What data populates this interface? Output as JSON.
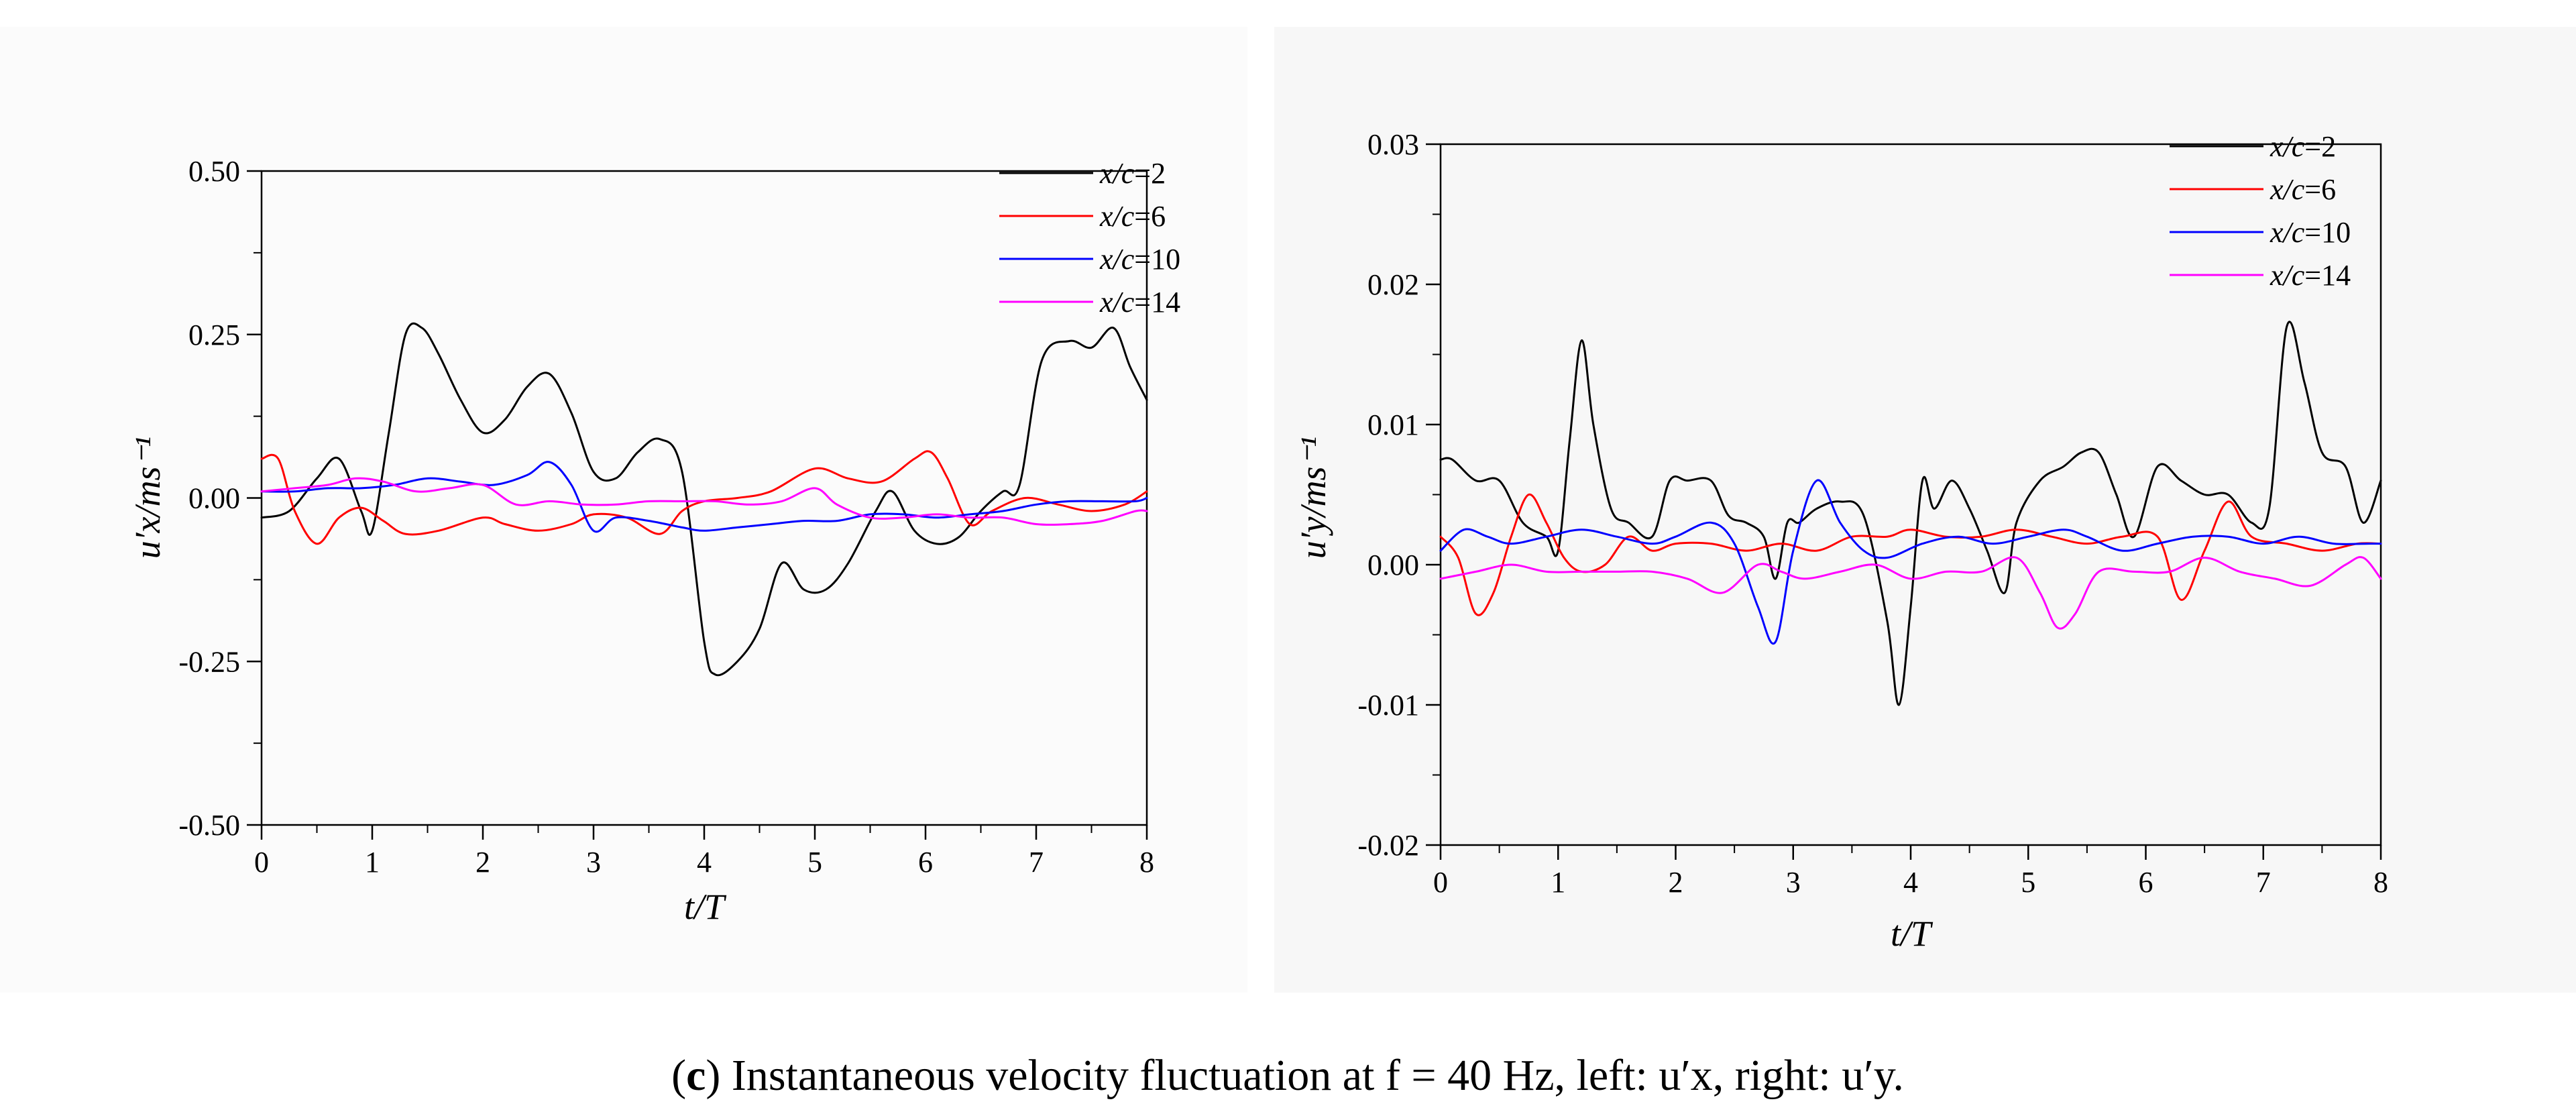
{
  "caption": {
    "label_letter": "c",
    "text": "Instantaneous velocity fluctuation at f = 40 Hz, left: u′x, right: u′y."
  },
  "colors": {
    "s1": "#000000",
    "s2": "#ff0000",
    "s3": "#0000ff",
    "s4": "#ff00ff",
    "bg": "#ffffff",
    "panel": "#f8f8f8"
  },
  "chart_data": [
    {
      "type": "line",
      "panel": "left",
      "xlabel": "t/T",
      "ylabel": "u′x/ms⁻¹",
      "xlim": [
        0,
        8
      ],
      "ylim": [
        -0.5,
        0.5
      ],
      "x_ticks": [
        "0",
        "1",
        "2",
        "3",
        "4",
        "5",
        "6",
        "7",
        "8"
      ],
      "y_ticks": [
        "0.50",
        "0.25",
        "0.00",
        "-0.25",
        "-0.50"
      ],
      "legend_position": "top-right",
      "series": [
        {
          "name": "x/c=2",
          "color": "#000000",
          "x": [
            0,
            0.25,
            0.5,
            0.7,
            0.9,
            1.0,
            1.15,
            1.3,
            1.45,
            1.6,
            1.8,
            2.0,
            2.2,
            2.4,
            2.6,
            2.8,
            3.0,
            3.2,
            3.4,
            3.6,
            3.8,
            4.0,
            4.1,
            4.3,
            4.5,
            4.7,
            4.9,
            5.1,
            5.3,
            5.55,
            5.7,
            5.9,
            6.1,
            6.3,
            6.5,
            6.7,
            6.85,
            7.05,
            7.3,
            7.5,
            7.7,
            7.85,
            8.0
          ],
          "y": [
            -0.03,
            -0.02,
            0.03,
            0.06,
            -0.02,
            -0.05,
            0.1,
            0.25,
            0.26,
            0.22,
            0.15,
            0.1,
            0.12,
            0.17,
            0.19,
            0.13,
            0.04,
            0.03,
            0.07,
            0.09,
            0.04,
            -0.22,
            -0.27,
            -0.25,
            -0.2,
            -0.1,
            -0.14,
            -0.14,
            -0.1,
            -0.02,
            0.01,
            -0.05,
            -0.07,
            -0.06,
            -0.02,
            0.01,
            0.02,
            0.21,
            0.24,
            0.23,
            0.26,
            0.2,
            0.15
          ]
        },
        {
          "name": "x/c=6",
          "color": "#ff0000",
          "x": [
            0,
            0.15,
            0.3,
            0.5,
            0.7,
            0.9,
            1.1,
            1.3,
            1.6,
            2.0,
            2.2,
            2.5,
            2.8,
            3.0,
            3.3,
            3.6,
            3.8,
            4.0,
            4.3,
            4.6,
            5.0,
            5.3,
            5.6,
            5.9,
            6.05,
            6.2,
            6.4,
            6.6,
            6.9,
            7.2,
            7.5,
            7.8,
            8.0
          ],
          "y": [
            0.06,
            0.06,
            -0.02,
            -0.07,
            -0.03,
            -0.015,
            -0.035,
            -0.055,
            -0.05,
            -0.03,
            -0.04,
            -0.05,
            -0.04,
            -0.025,
            -0.03,
            -0.055,
            -0.02,
            -0.005,
            0.0,
            0.01,
            0.045,
            0.03,
            0.025,
            0.06,
            0.07,
            0.03,
            -0.04,
            -0.02,
            0.0,
            -0.01,
            -0.02,
            -0.01,
            0.01
          ]
        },
        {
          "name": "x/c=10",
          "color": "#0000ff",
          "x": [
            0,
            0.3,
            0.6,
            0.9,
            1.2,
            1.5,
            1.8,
            2.1,
            2.4,
            2.6,
            2.8,
            3.0,
            3.2,
            3.5,
            3.8,
            4.0,
            4.3,
            4.6,
            4.9,
            5.2,
            5.5,
            5.8,
            6.1,
            6.4,
            6.7,
            7.0,
            7.3,
            7.6,
            7.9,
            8.0
          ],
          "y": [
            0.01,
            0.01,
            0.015,
            0.015,
            0.02,
            0.03,
            0.025,
            0.02,
            0.035,
            0.055,
            0.02,
            -0.05,
            -0.03,
            -0.035,
            -0.045,
            -0.05,
            -0.045,
            -0.04,
            -0.035,
            -0.035,
            -0.025,
            -0.025,
            -0.03,
            -0.025,
            -0.02,
            -0.01,
            -0.005,
            -0.005,
            -0.005,
            0.0
          ]
        },
        {
          "name": "x/c=14",
          "color": "#ff00ff",
          "x": [
            0,
            0.3,
            0.6,
            0.85,
            1.1,
            1.4,
            1.7,
            2.0,
            2.3,
            2.6,
            2.9,
            3.2,
            3.5,
            3.8,
            4.1,
            4.4,
            4.7,
            5.0,
            5.2,
            5.5,
            5.8,
            6.1,
            6.4,
            6.7,
            7.0,
            7.3,
            7.6,
            7.9,
            8.0
          ],
          "y": [
            0.01,
            0.015,
            0.02,
            0.03,
            0.025,
            0.01,
            0.015,
            0.02,
            -0.01,
            -0.005,
            -0.01,
            -0.01,
            -0.005,
            -0.005,
            -0.005,
            -0.01,
            -0.005,
            0.015,
            -0.01,
            -0.03,
            -0.03,
            -0.025,
            -0.03,
            -0.03,
            -0.04,
            -0.04,
            -0.035,
            -0.02,
            -0.02
          ]
        }
      ]
    },
    {
      "type": "line",
      "panel": "right",
      "xlabel": "t/T",
      "ylabel": "u′y/ms⁻¹",
      "xlim": [
        0,
        8
      ],
      "ylim": [
        -0.02,
        0.03
      ],
      "x_ticks": [
        "0",
        "1",
        "2",
        "3",
        "4",
        "5",
        "6",
        "7",
        "8"
      ],
      "y_ticks": [
        "0.03",
        "0.02",
        "0.01",
        "0.00",
        "-0.01",
        "-0.02"
      ],
      "legend_position": "top-right",
      "series": [
        {
          "name": "x/c=2",
          "color": "#000000",
          "x": [
            0,
            0.1,
            0.3,
            0.5,
            0.7,
            0.9,
            1.0,
            1.1,
            1.2,
            1.3,
            1.45,
            1.6,
            1.8,
            1.95,
            2.1,
            2.3,
            2.45,
            2.6,
            2.75,
            2.85,
            2.95,
            3.05,
            3.2,
            3.4,
            3.6,
            3.8,
            3.9,
            4.0,
            4.1,
            4.2,
            4.35,
            4.5,
            4.65,
            4.8,
            4.9,
            5.1,
            5.3,
            5.45,
            5.6,
            5.75,
            5.9,
            6.1,
            6.3,
            6.5,
            6.7,
            6.9,
            7.05,
            7.2,
            7.35,
            7.5,
            7.7,
            7.85,
            8.0
          ],
          "y": [
            0.0075,
            0.0075,
            0.006,
            0.006,
            0.003,
            0.002,
            0.001,
            0.009,
            0.016,
            0.01,
            0.004,
            0.003,
            0.002,
            0.006,
            0.006,
            0.006,
            0.0035,
            0.003,
            0.002,
            -0.001,
            0.003,
            0.003,
            0.004,
            0.0045,
            0.0035,
            -0.004,
            -0.01,
            -0.003,
            0.006,
            0.004,
            0.006,
            0.004,
            0.001,
            -0.002,
            0.003,
            0.006,
            0.007,
            0.008,
            0.008,
            0.005,
            0.002,
            0.007,
            0.006,
            0.005,
            0.005,
            0.003,
            0.004,
            0.017,
            0.013,
            0.008,
            0.007,
            0.003,
            0.006
          ]
        },
        {
          "name": "x/c=6",
          "color": "#ff0000",
          "x": [
            0,
            0.15,
            0.3,
            0.45,
            0.6,
            0.75,
            0.9,
            1.05,
            1.2,
            1.4,
            1.6,
            1.8,
            2.0,
            2.3,
            2.6,
            2.9,
            3.2,
            3.5,
            3.8,
            4.0,
            4.3,
            4.6,
            4.9,
            5.2,
            5.5,
            5.8,
            6.1,
            6.3,
            6.5,
            6.7,
            6.9,
            7.2,
            7.5,
            7.8,
            8.0
          ],
          "y": [
            0.002,
            0.0005,
            -0.0035,
            -0.002,
            0.002,
            0.005,
            0.003,
            0.0005,
            -0.0005,
            0.0,
            0.002,
            0.001,
            0.0015,
            0.0015,
            0.001,
            0.0015,
            0.001,
            0.002,
            0.002,
            0.0025,
            0.002,
            0.002,
            0.0025,
            0.002,
            0.0015,
            0.002,
            0.002,
            -0.0025,
            0.001,
            0.0045,
            0.002,
            0.0015,
            0.001,
            0.0015,
            0.0015
          ]
        },
        {
          "name": "x/c=10",
          "color": "#0000ff",
          "x": [
            0,
            0.2,
            0.4,
            0.6,
            0.9,
            1.2,
            1.5,
            1.8,
            2.0,
            2.3,
            2.5,
            2.7,
            2.85,
            3.0,
            3.2,
            3.4,
            3.6,
            3.8,
            4.1,
            4.4,
            4.7,
            5.0,
            5.3,
            5.5,
            5.8,
            6.1,
            6.4,
            6.7,
            7.0,
            7.3,
            7.6,
            7.9,
            8.0
          ],
          "y": [
            0.001,
            0.0025,
            0.002,
            0.0015,
            0.002,
            0.0025,
            0.002,
            0.0015,
            0.002,
            0.003,
            0.0015,
            -0.003,
            -0.0055,
            0.001,
            0.006,
            0.003,
            0.001,
            0.0005,
            0.0015,
            0.002,
            0.0015,
            0.002,
            0.0025,
            0.002,
            0.001,
            0.0015,
            0.002,
            0.002,
            0.0015,
            0.002,
            0.0015,
            0.0015,
            0.0015
          ]
        },
        {
          "name": "x/c=14",
          "color": "#ff00ff",
          "x": [
            0,
            0.3,
            0.6,
            0.9,
            1.2,
            1.5,
            1.8,
            2.1,
            2.4,
            2.7,
            2.9,
            3.1,
            3.4,
            3.7,
            4.0,
            4.3,
            4.6,
            4.9,
            5.1,
            5.25,
            5.4,
            5.6,
            5.9,
            6.2,
            6.5,
            6.8,
            7.1,
            7.4,
            7.7,
            7.85,
            8.0
          ],
          "y": [
            -0.001,
            -0.0005,
            0.0,
            -0.0005,
            -0.0005,
            -0.0005,
            -0.0005,
            -0.001,
            -0.002,
            0.0,
            -0.0005,
            -0.001,
            -0.0005,
            0.0,
            -0.001,
            -0.0005,
            -0.0005,
            0.0005,
            -0.002,
            -0.0045,
            -0.0035,
            -0.0005,
            -0.0005,
            -0.0005,
            0.0005,
            -0.0005,
            -0.001,
            -0.0015,
            0.0,
            0.0005,
            -0.001
          ]
        }
      ]
    }
  ]
}
